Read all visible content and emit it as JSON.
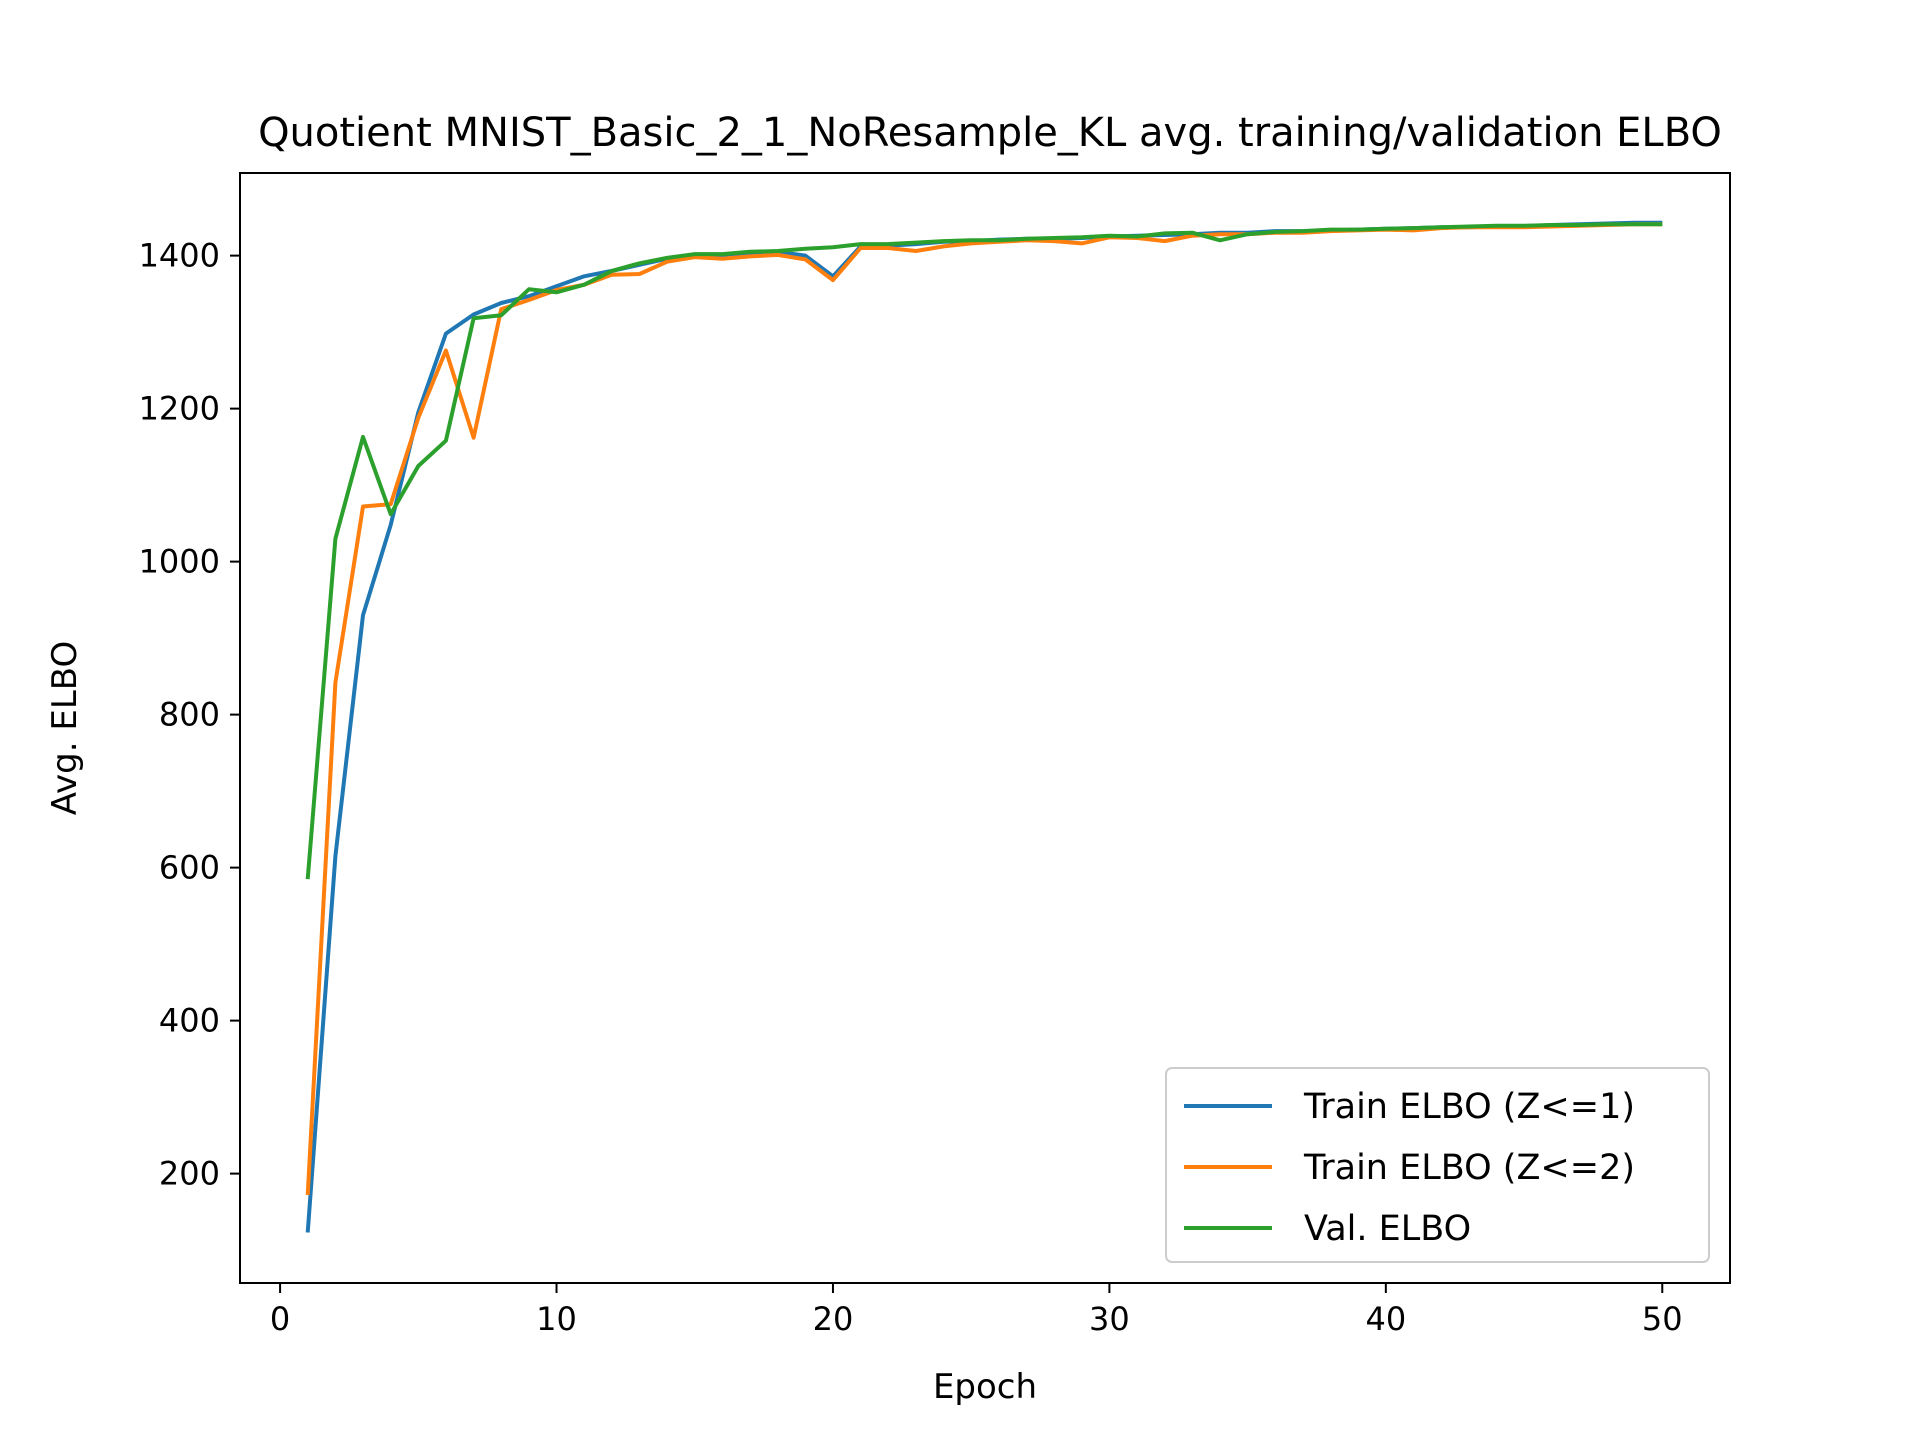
{
  "chart_data": {
    "type": "line",
    "title": "Quotient MNIST_Basic_2_1_NoResample_KL avg. training/validation ELBO",
    "xlabel": "Epoch",
    "ylabel": "Avg. ELBO",
    "xlim": [
      -1.45,
      52.45
    ],
    "ylim": [
      57,
      1508
    ],
    "xticks": [
      0,
      10,
      20,
      30,
      40,
      50
    ],
    "yticks": [
      200,
      400,
      600,
      800,
      1000,
      1200,
      1400
    ],
    "grid": false,
    "legend": "lower-right",
    "x": [
      1,
      2,
      3,
      4,
      5,
      6,
      7,
      8,
      9,
      10,
      11,
      12,
      13,
      14,
      15,
      16,
      17,
      18,
      19,
      20,
      21,
      22,
      23,
      24,
      25,
      26,
      27,
      28,
      29,
      30,
      31,
      32,
      33,
      34,
      35,
      36,
      37,
      38,
      39,
      40,
      41,
      42,
      43,
      44,
      45,
      46,
      47,
      48,
      49,
      50
    ],
    "series": [
      {
        "name": "Train ELBO (Z<=1)",
        "color": "#1f77b4",
        "values": [
          123,
          615,
          930,
          1048,
          1195,
          1298,
          1323,
          1338,
          1347,
          1360,
          1373,
          1380,
          1388,
          1396,
          1400,
          1401,
          1404,
          1405,
          1400,
          1373,
          1412,
          1413,
          1415,
          1418,
          1419,
          1421,
          1422,
          1422,
          1423,
          1425,
          1426,
          1427,
          1428,
          1430,
          1430,
          1432,
          1432,
          1433,
          1434,
          1435,
          1436,
          1437,
          1437,
          1438,
          1438,
          1440,
          1441,
          1442,
          1443,
          1443
        ]
      },
      {
        "name": "Train ELBO (Z<=2)",
        "color": "#ff7f0e",
        "values": [
          172,
          842,
          1072,
          1075,
          1188,
          1276,
          1162,
          1330,
          1342,
          1355,
          1362,
          1375,
          1376,
          1392,
          1398,
          1396,
          1399,
          1401,
          1395,
          1368,
          1410,
          1410,
          1406,
          1412,
          1416,
          1418,
          1420,
          1419,
          1416,
          1424,
          1423,
          1419,
          1426,
          1428,
          1428,
          1430,
          1430,
          1432,
          1433,
          1434,
          1433,
          1436,
          1437,
          1437,
          1437,
          1438,
          1439,
          1440,
          1441,
          1441
        ]
      },
      {
        "name": "Val. ELBO",
        "color": "#2ca02c",
        "values": [
          585,
          1030,
          1163,
          1062,
          1125,
          1158,
          1318,
          1322,
          1356,
          1352,
          1362,
          1380,
          1390,
          1397,
          1402,
          1402,
          1405,
          1406,
          1409,
          1411,
          1415,
          1415,
          1417,
          1419,
          1420,
          1420,
          1422,
          1423,
          1424,
          1426,
          1425,
          1429,
          1430,
          1420,
          1428,
          1431,
          1432,
          1434,
          1434,
          1435,
          1436,
          1437,
          1438,
          1439,
          1439,
          1440,
          1440,
          1441,
          1441,
          1441
        ]
      }
    ]
  }
}
